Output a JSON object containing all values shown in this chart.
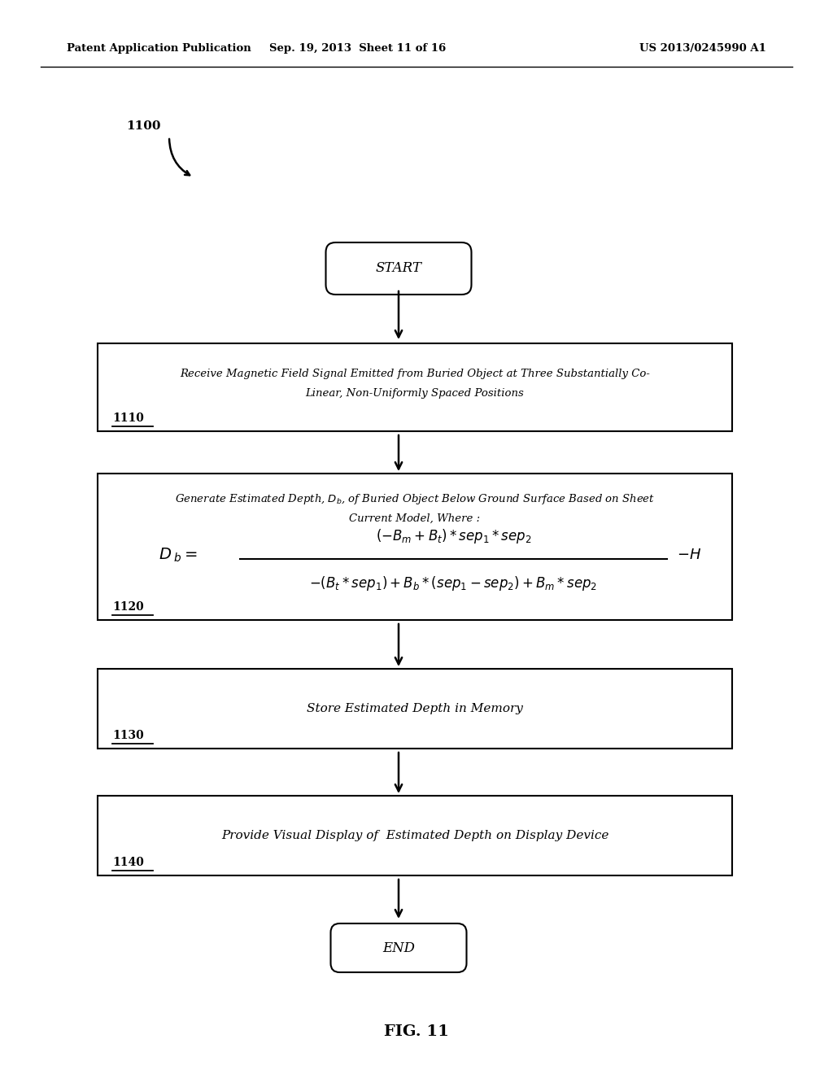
{
  "header_left": "Patent Application Publication",
  "header_mid": "Sep. 19, 2013  Sheet 11 of 16",
  "header_right": "US 2013/0245990 A1",
  "fig_label": "FIG. 11",
  "diagram_label": "1100",
  "start_text": "START",
  "end_text": "END",
  "box1_label": "1110",
  "box2_label": "1120",
  "box3_label": "1130",
  "box4_label": "1140",
  "box1_line1": "Receive Magnetic Field Signal Emitted from Buried Object at Three Substantially Co-",
  "box1_line2": "Linear, Non-Uniformly Spaced Positions",
  "box2_line1": "Generate Estimated Depth, $D_b$, of Buried Object Below Ground Surface Based on Sheet",
  "box2_line2": "Current Model, Where :",
  "box3_text": "Store Estimated Depth in Memory",
  "box4_text": "Provide Visual Display of  Estimated Depth on Display Device",
  "bg_color": "#ffffff",
  "text_color": "#000000"
}
